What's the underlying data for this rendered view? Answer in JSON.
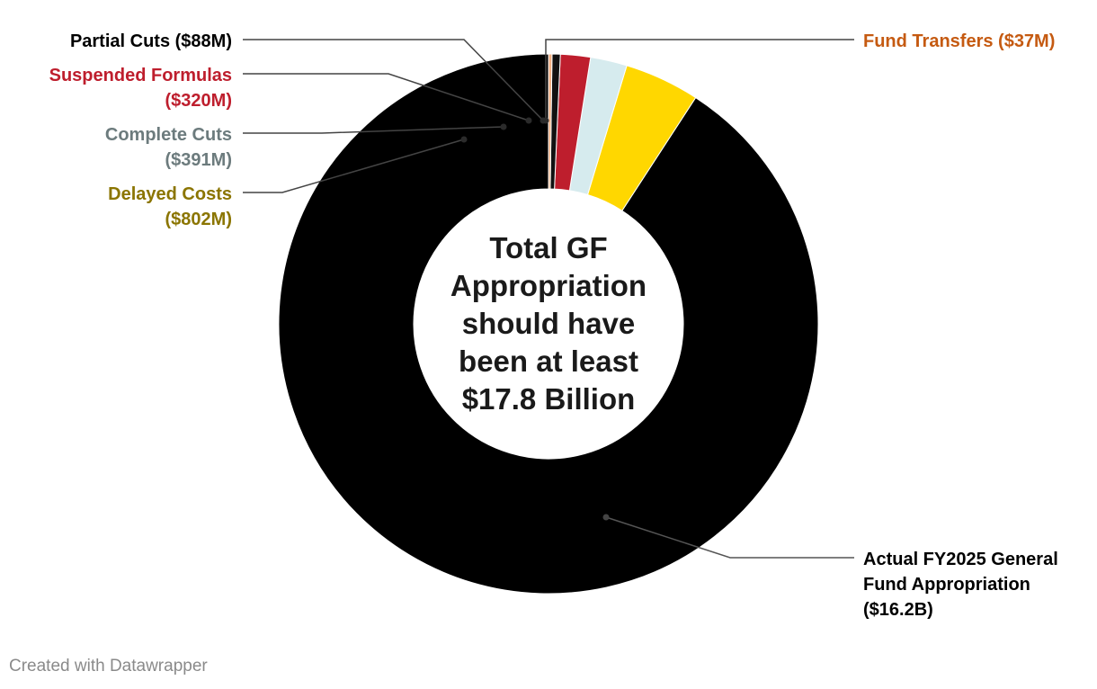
{
  "chart_data": {
    "type": "pie",
    "variant": "donut",
    "center_text": [
      "Total GF",
      "Appropriation",
      "should have",
      "been at least",
      "$17.8 Billion"
    ],
    "slices": [
      {
        "name": "Actual FY2025 General Fund Appropriation",
        "label_lines": [
          "Actual FY2025 General",
          "Fund Appropriation",
          "($16.2B)"
        ],
        "value": 16200,
        "color": "#000000",
        "label_color": "#000000"
      },
      {
        "name": "Delayed Costs",
        "label_lines": [
          "Delayed Costs",
          "($802M)"
        ],
        "value": 802,
        "color": "#FFD700",
        "label_color": "#8B7500"
      },
      {
        "name": "Complete Cuts",
        "label_lines": [
          "Complete Cuts",
          "($391M)"
        ],
        "value": 391,
        "color": "#D6EBEE",
        "label_color": "#6C7B7D"
      },
      {
        "name": "Suspended Formulas",
        "label_lines": [
          "Suspended Formulas",
          "($320M)"
        ],
        "value": 320,
        "color": "#BE1E2D",
        "label_color": "#BE1E2D"
      },
      {
        "name": "Partial Cuts",
        "label_lines": [
          "Partial Cuts ($88M)"
        ],
        "value": 88,
        "color": "#111111",
        "label_color": "#000000"
      },
      {
        "name": "Fund Transfers",
        "label_lines": [
          "Fund Transfers ($37M)"
        ],
        "value": 37,
        "color": "#F4B183",
        "label_color": "#C55A11"
      }
    ],
    "units": "$M"
  },
  "credit": "Created with Datawrapper"
}
